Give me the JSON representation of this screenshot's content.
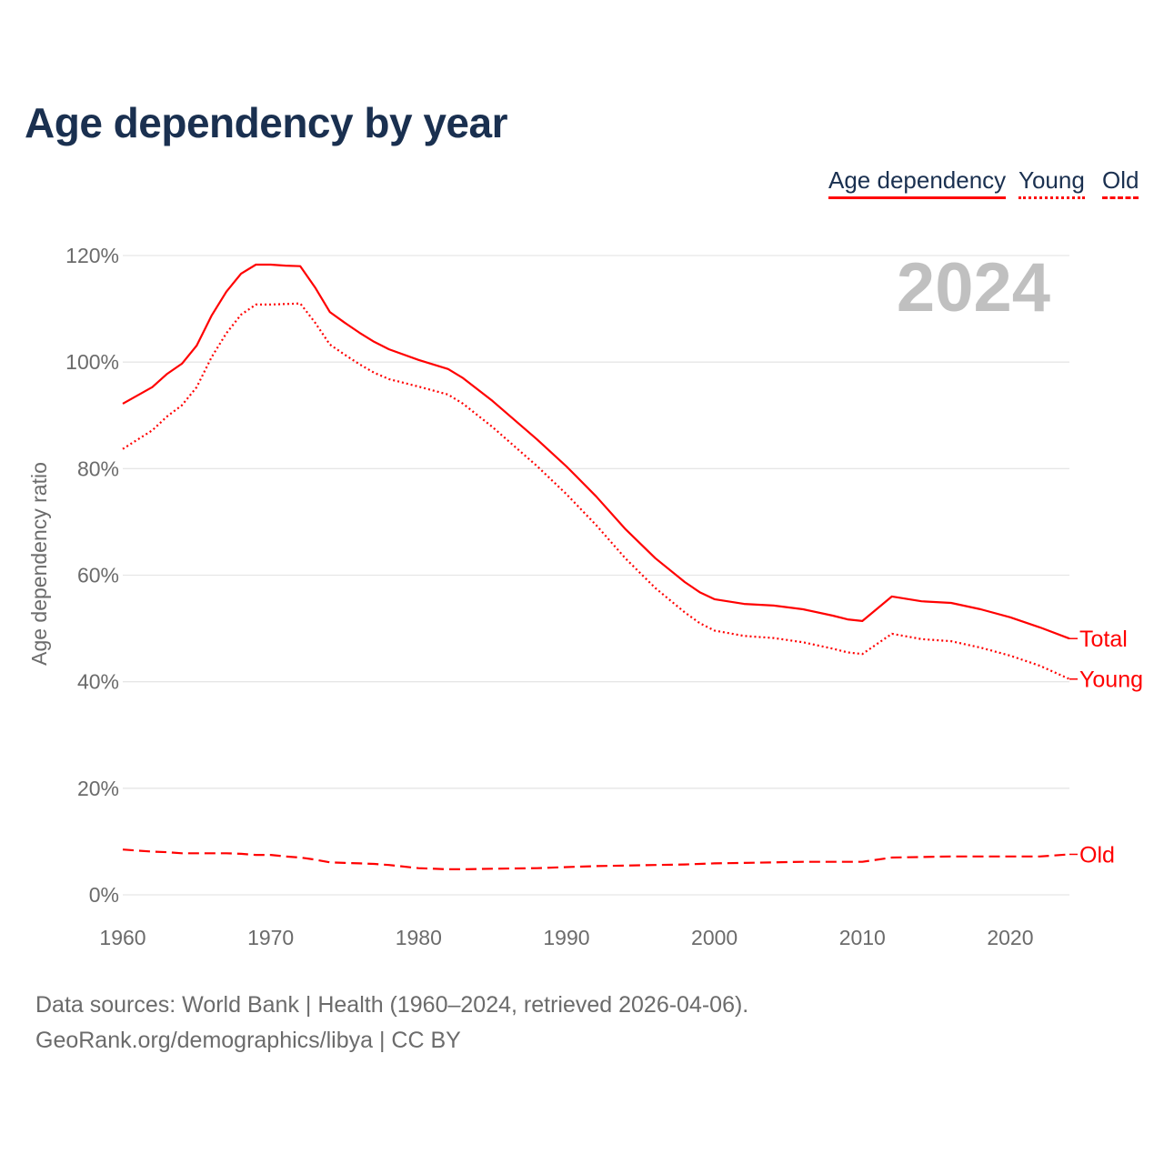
{
  "title": "Age dependency by year",
  "legend": {
    "total": "Age dependency",
    "young": "Young",
    "old": "Old"
  },
  "footer": {
    "line1": "Data sources: World Bank | Health (1960–2024, retrieved 2026-04-06).",
    "line2": "GeoRank.org/demographics/libya | CC BY"
  },
  "colors": {
    "line": "#ff0000",
    "title": "#1a3050",
    "year_watermark": "#c0c0c0",
    "grid": "#e6e6e6"
  },
  "chart_data": {
    "type": "line",
    "title": "Age dependency by year",
    "xlabel": "",
    "ylabel": "Age dependency ratio",
    "year_label": "2024",
    "xlim": [
      1960,
      2024
    ],
    "ylim": [
      0,
      120
    ],
    "x_ticks": [
      "1960",
      "1970",
      "1980",
      "1990",
      "2000",
      "2010",
      "2020"
    ],
    "y_ticks": [
      "0%",
      "20%",
      "40%",
      "60%",
      "80%",
      "100%",
      "120%"
    ],
    "grid": true,
    "x": [
      1960,
      1962,
      1963,
      1964,
      1965,
      1966,
      1967,
      1968,
      1969,
      1970,
      1971,
      1972,
      1973,
      1974,
      1975,
      1976,
      1977,
      1978,
      1980,
      1982,
      1983,
      1985,
      1988,
      1990,
      1992,
      1994,
      1996,
      1998,
      1999,
      2000,
      2002,
      2004,
      2006,
      2008,
      2009,
      2010,
      2012,
      2014,
      2016,
      2018,
      2020,
      2022,
      2024
    ],
    "series": [
      {
        "name": "Total",
        "style": "solid",
        "values": [
          92.2,
          95.3,
          97.8,
          99.7,
          103.1,
          108.7,
          113.2,
          116.6,
          118.3,
          118.3,
          118.1,
          118.0,
          114.0,
          109.4,
          107.4,
          105.5,
          103.8,
          102.4,
          100.4,
          98.7,
          97.0,
          92.7,
          85.5,
          80.4,
          74.8,
          68.6,
          63.2,
          58.7,
          56.8,
          55.5,
          54.6,
          54.3,
          53.6,
          52.4,
          51.7,
          51.4,
          56.0,
          55.1,
          54.8,
          53.6,
          52.1,
          50.2,
          48.1
        ]
      },
      {
        "name": "Young",
        "style": "dotted",
        "values": [
          83.7,
          87.2,
          89.8,
          91.9,
          95.3,
          100.9,
          105.4,
          108.9,
          110.8,
          110.8,
          110.9,
          111.0,
          107.4,
          103.3,
          101.4,
          99.6,
          98.0,
          96.8,
          95.4,
          93.9,
          92.2,
          87.8,
          80.5,
          75.2,
          69.4,
          63.1,
          57.6,
          53.0,
          51.0,
          49.6,
          48.6,
          48.2,
          47.4,
          46.2,
          45.5,
          45.2,
          49.0,
          48.0,
          47.6,
          46.4,
          44.9,
          43.0,
          40.5
        ]
      },
      {
        "name": "Old",
        "style": "dashed",
        "values": [
          8.5,
          8.1,
          8.0,
          7.8,
          7.8,
          7.8,
          7.8,
          7.7,
          7.5,
          7.5,
          7.2,
          7.0,
          6.6,
          6.1,
          6.0,
          5.9,
          5.8,
          5.6,
          5.0,
          4.8,
          4.8,
          4.9,
          5.0,
          5.2,
          5.4,
          5.5,
          5.6,
          5.7,
          5.8,
          5.9,
          6.0,
          6.1,
          6.2,
          6.2,
          6.2,
          6.2,
          7.0,
          7.1,
          7.2,
          7.2,
          7.2,
          7.2,
          7.6
        ]
      }
    ],
    "end_labels": [
      "Total",
      "Young",
      "Old"
    ]
  }
}
